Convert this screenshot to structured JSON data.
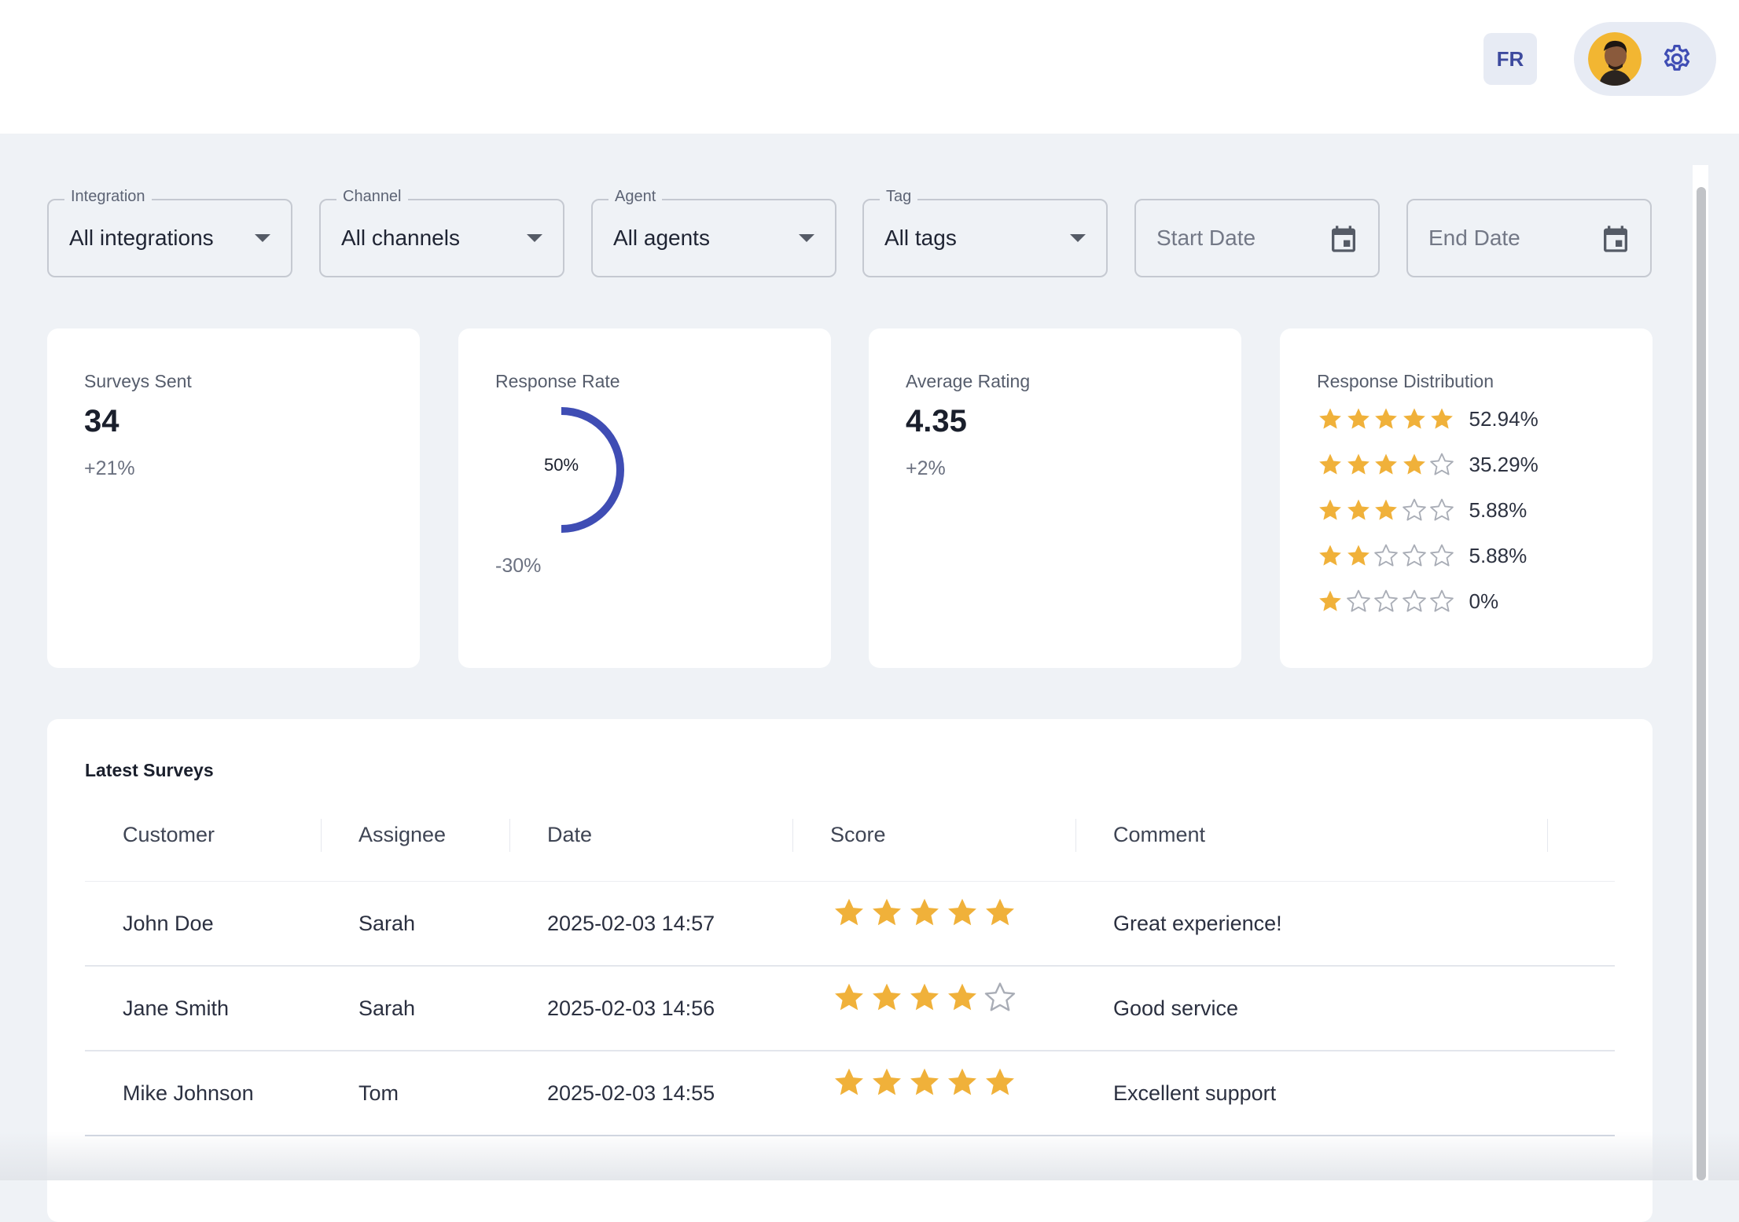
{
  "header": {
    "language_label": "FR"
  },
  "filters": {
    "integration": {
      "label": "Integration",
      "value": "All integrations"
    },
    "channel": {
      "label": "Channel",
      "value": "All channels"
    },
    "agent": {
      "label": "Agent",
      "value": "All agents"
    },
    "tag": {
      "label": "Tag",
      "value": "All tags"
    },
    "start_date": {
      "placeholder": "Start Date"
    },
    "end_date": {
      "placeholder": "End Date"
    }
  },
  "cards": {
    "surveys_sent": {
      "title": "Surveys Sent",
      "value": "34",
      "delta": "+21%"
    },
    "response_rate": {
      "title": "Response Rate",
      "value_label": "50%",
      "value": 0.5,
      "delta": "-30%"
    },
    "average_rating": {
      "title": "Average Rating",
      "value": "4.35",
      "delta": "+2%"
    },
    "distribution": {
      "title": "Response Distribution",
      "rows": [
        {
          "stars": 5,
          "pct": "52.94%"
        },
        {
          "stars": 4,
          "pct": "35.29%"
        },
        {
          "stars": 3,
          "pct": "5.88%"
        },
        {
          "stars": 2,
          "pct": "5.88%"
        },
        {
          "stars": 1,
          "pct": "0%"
        }
      ]
    }
  },
  "table": {
    "title": "Latest Surveys",
    "columns": [
      "Customer",
      "Assignee",
      "Date",
      "Score",
      "Comment"
    ],
    "rows": [
      {
        "customer": "John Doe",
        "assignee": "Sarah",
        "date": "2025-02-03 14:57",
        "score": 5,
        "comment": "Great experience!"
      },
      {
        "customer": "Jane Smith",
        "assignee": "Sarah",
        "date": "2025-02-03 14:56",
        "score": 4,
        "comment": "Good service"
      },
      {
        "customer": "Mike Johnson",
        "assignee": "Tom",
        "date": "2025-02-03 14:55",
        "score": 5,
        "comment": "Excellent support"
      }
    ]
  },
  "icons": {
    "gear": "gear-icon",
    "calendar": "calendar-icon",
    "caret": "caret-down-icon",
    "star": "star-icon"
  },
  "colors": {
    "accent": "#3f4db4",
    "star_filled": "#f0b13a",
    "star_empty": "#a9adb6"
  }
}
